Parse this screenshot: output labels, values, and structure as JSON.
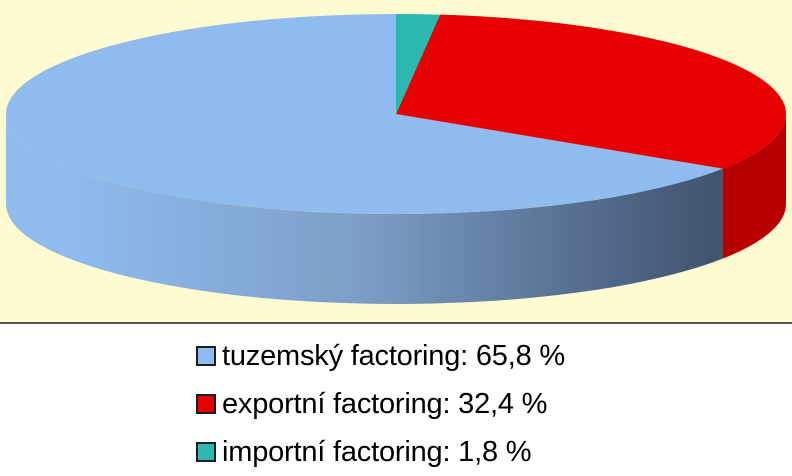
{
  "chart_data": {
    "type": "pie",
    "style": "3d",
    "grid": false,
    "legend_position": "bottom",
    "slices": [
      {
        "label": "tuzemský factoring: 65,8 %",
        "value": 65.8,
        "color": "#8fbbee",
        "dark_color": "#3d5068"
      },
      {
        "label": "exportní factoring: 32,4 %",
        "value": 32.4,
        "color": "#e60000",
        "dark_color": "#b80000"
      },
      {
        "label": "importní factoring: 1,8 %",
        "value": 1.8,
        "color": "#2ab8b0",
        "dark_color": "#1a7a75"
      }
    ]
  }
}
